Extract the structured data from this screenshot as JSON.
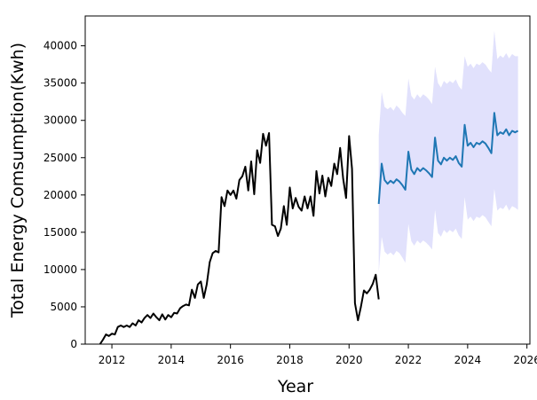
{
  "chart_data": {
    "type": "line",
    "title": "",
    "xlabel": "Year",
    "ylabel": "Total Energy Comsumption(Kwh)",
    "xlim": [
      2011.1,
      2026.1
    ],
    "ylim": [
      0,
      44000
    ],
    "xticks": [
      2012,
      2014,
      2016,
      2018,
      2020,
      2022,
      2024,
      2026
    ],
    "yticks": [
      0,
      5000,
      10000,
      15000,
      20000,
      25000,
      30000,
      35000,
      40000
    ],
    "grid": false,
    "legend": "none",
    "colors": {
      "history": "#000000",
      "forecast": "#1f77b4",
      "band": "#dcdcfc"
    },
    "series": [
      {
        "role": "history",
        "x": [
          2011.6,
          2011.7,
          2011.8,
          2011.9,
          2012.0,
          2012.1,
          2012.2,
          2012.3,
          2012.4,
          2012.5,
          2012.6,
          2012.7,
          2012.8,
          2012.9,
          2013.0,
          2013.1,
          2013.2,
          2013.3,
          2013.4,
          2013.5,
          2013.6,
          2013.7,
          2013.8,
          2013.9,
          2014.0,
          2014.1,
          2014.2,
          2014.3,
          2014.4,
          2014.5,
          2014.6,
          2014.7,
          2014.8,
          2014.9,
          2015.0,
          2015.1,
          2015.2,
          2015.3,
          2015.4,
          2015.5,
          2015.6,
          2015.7,
          2015.8,
          2015.9,
          2016.0,
          2016.1,
          2016.2,
          2016.3,
          2016.4,
          2016.5,
          2016.6,
          2016.7,
          2016.8,
          2016.9,
          2017.0,
          2017.1,
          2017.2,
          2017.3,
          2017.4,
          2017.5,
          2017.6,
          2017.7,
          2017.8,
          2017.9,
          2018.0,
          2018.1,
          2018.2,
          2018.3,
          2018.4,
          2018.5,
          2018.6,
          2018.7,
          2018.8,
          2018.9,
          2019.0,
          2019.1,
          2019.2,
          2019.3,
          2019.4,
          2019.5,
          2019.6,
          2019.7,
          2019.8,
          2019.9,
          2020.0,
          2020.1,
          2020.2,
          2020.3,
          2020.4,
          2020.5,
          2020.6,
          2020.7,
          2020.8,
          2020.9,
          2021.0
        ],
        "values": [
          0,
          600,
          1300,
          1100,
          1400,
          1300,
          2300,
          2500,
          2300,
          2500,
          2300,
          2800,
          2500,
          3200,
          2900,
          3500,
          3900,
          3500,
          4100,
          3600,
          3200,
          4000,
          3300,
          3900,
          3600,
          4200,
          4100,
          4800,
          5100,
          5300,
          5200,
          7300,
          6200,
          8000,
          8400,
          6200,
          8000,
          11000,
          12200,
          12500,
          12300,
          19700,
          18500,
          20600,
          20000,
          20600,
          19500,
          22000,
          22500,
          23800,
          20600,
          24500,
          20100,
          26000,
          24300,
          28200,
          26600,
          28300,
          16000,
          15800,
          14500,
          15500,
          18500,
          16000,
          21000,
          18200,
          19600,
          18400,
          17900,
          19800,
          18200,
          19800,
          17200,
          23200,
          20200,
          22600,
          19800,
          22300,
          21200,
          24200,
          22800,
          26300,
          22200,
          19600,
          27900,
          23500,
          5500,
          3200,
          5000,
          7200,
          6800,
          7300,
          8100,
          9300,
          6000
        ]
      },
      {
        "role": "forecast",
        "x": [
          2021.0,
          2021.1,
          2021.2,
          2021.3,
          2021.4,
          2021.5,
          2021.6,
          2021.7,
          2021.8,
          2021.9,
          2022.0,
          2022.1,
          2022.2,
          2022.3,
          2022.4,
          2022.5,
          2022.6,
          2022.7,
          2022.8,
          2022.9,
          2023.0,
          2023.1,
          2023.2,
          2023.3,
          2023.4,
          2023.5,
          2023.6,
          2023.7,
          2023.8,
          2023.9,
          2024.0,
          2024.1,
          2024.2,
          2024.3,
          2024.4,
          2024.5,
          2024.6,
          2024.7,
          2024.8,
          2024.9,
          2025.0,
          2025.1,
          2025.2,
          2025.3,
          2025.4,
          2025.5,
          2025.6,
          2025.7
        ],
        "values": [
          18800,
          24200,
          22000,
          21500,
          21900,
          21600,
          22100,
          21800,
          21300,
          20700,
          25800,
          23400,
          22800,
          23600,
          23200,
          23600,
          23300,
          22900,
          22400,
          27700,
          24600,
          24100,
          25000,
          24600,
          25000,
          24700,
          25200,
          24300,
          23800,
          29400,
          26600,
          27000,
          26400,
          27000,
          26800,
          27200,
          26900,
          26300,
          25600,
          31000,
          28000,
          28400,
          28200,
          28800,
          28000,
          28600,
          28400,
          28600
        ]
      }
    ],
    "band": {
      "x": [
        2021.0,
        2021.1,
        2021.2,
        2021.3,
        2021.4,
        2021.5,
        2021.6,
        2021.7,
        2021.8,
        2021.9,
        2022.0,
        2022.1,
        2022.2,
        2022.3,
        2022.4,
        2022.5,
        2022.6,
        2022.7,
        2022.8,
        2022.9,
        2023.0,
        2023.1,
        2023.2,
        2023.3,
        2023.4,
        2023.5,
        2023.6,
        2023.7,
        2023.8,
        2023.9,
        2024.0,
        2024.1,
        2024.2,
        2024.3,
        2024.4,
        2024.5,
        2024.6,
        2024.7,
        2024.8,
        2024.9,
        2025.0,
        2025.1,
        2025.2,
        2025.3,
        2025.4,
        2025.5,
        2025.6,
        2025.7
      ],
      "upper": [
        28000,
        33800,
        31800,
        31500,
        31800,
        31300,
        32000,
        31600,
        31000,
        30600,
        35600,
        33300,
        32800,
        33500,
        33000,
        33500,
        33200,
        32800,
        32200,
        37200,
        35000,
        34400,
        35300,
        34900,
        35300,
        35000,
        35500,
        34600,
        34100,
        38600,
        37200,
        37600,
        37000,
        37600,
        37400,
        37800,
        37500,
        36900,
        36400,
        42000,
        38200,
        38700,
        38400,
        39000,
        38300,
        38900,
        38600,
        38600
      ],
      "lower": [
        9600,
        14400,
        12400,
        12000,
        12300,
        11900,
        12500,
        12200,
        11600,
        10900,
        16100,
        13800,
        13200,
        13900,
        13500,
        13900,
        13600,
        13200,
        12700,
        18000,
        14900,
        14400,
        15300,
        14900,
        15300,
        15000,
        15500,
        14600,
        14100,
        19700,
        16700,
        17100,
        16500,
        17100,
        16900,
        17300,
        17000,
        16400,
        15800,
        20800,
        17900,
        18300,
        18100,
        18700,
        17900,
        18500,
        18300,
        18000
      ]
    }
  }
}
